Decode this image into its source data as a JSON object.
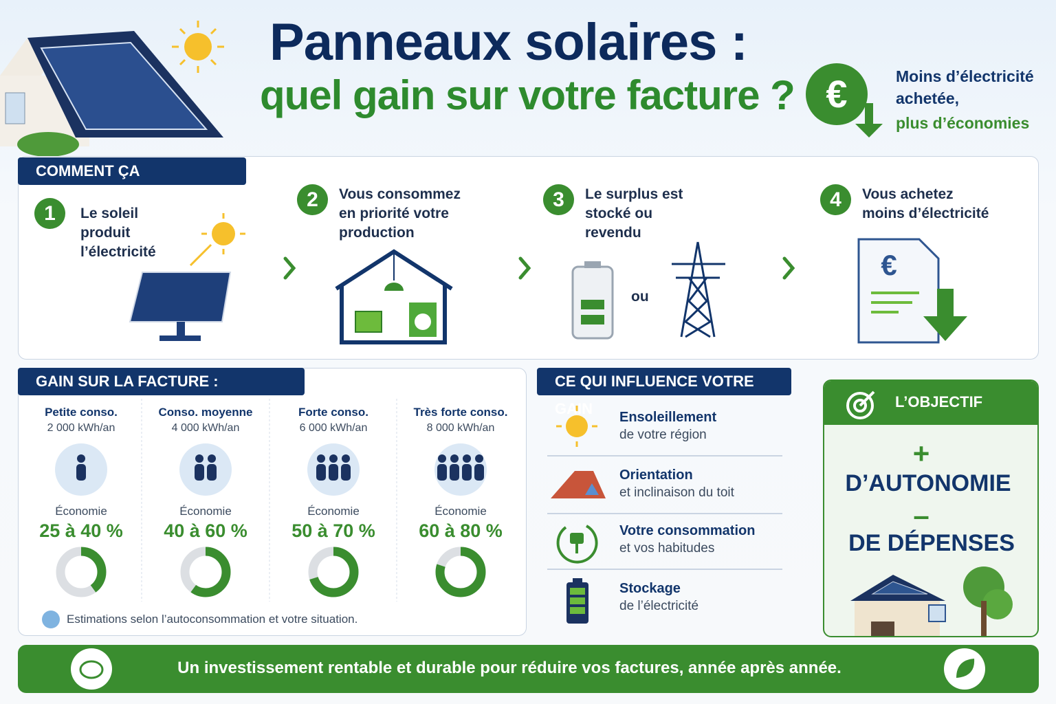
{
  "header": {
    "title": "Panneaux solaires :",
    "subtitle": "quel gain sur votre facture ?",
    "tagline": [
      "Moins d’électricité",
      "achetée,",
      "plus d’économies"
    ]
  },
  "how": {
    "title": "COMMENT ÇA FONCTIONNE",
    "steps": [
      {
        "number": "1",
        "lines": [
          "Le soleil",
          "produit",
          "l’électricité"
        ]
      },
      {
        "number": "2",
        "lines": [
          "Vous consommez",
          "en priorité votre",
          "production"
        ]
      },
      {
        "number": "3",
        "lines": [
          "Le surplus est",
          "stocké ou",
          "revendu"
        ]
      },
      {
        "number": "4",
        "lines": [
          "Vous achetez",
          "moins d’électricité"
        ]
      }
    ],
    "or": "ou"
  },
  "examples": {
    "title": "GAIN SUR LA FACTURE : EXEMPLES",
    "items": [
      {
        "label": "Petite conso.",
        "consumption": "2 000 kWh/an",
        "saving_label": "Économie",
        "saving": "25 à 40 %",
        "gauge": 40
      },
      {
        "label": "Conso. moyenne",
        "consumption": "4 000 kWh/an",
        "saving_label": "Économie",
        "saving": "40 à 60 %",
        "gauge": 60
      },
      {
        "label": "Forte conso.",
        "consumption": "6 000 kWh/an",
        "saving_label": "Économie",
        "saving": "50 à 70 %",
        "gauge": 70
      },
      {
        "label": "Très forte conso.",
        "consumption": "8 000 kWh/an",
        "saving_label": "Économie",
        "saving": "60 à 80 %",
        "gauge": 80
      }
    ],
    "note": "Estimations selon l’autoconsommation et votre situation."
  },
  "factors": {
    "title": "CE QUI INFLUENCE VOTRE GAIN",
    "items": [
      {
        "title": "Ensoleillement",
        "text": "de votre région"
      },
      {
        "title": "Orientation",
        "text": "et inclinaison du toit"
      },
      {
        "title": "Votre consommation",
        "text": "et vos habitudes"
      },
      {
        "title": "Stockage",
        "text": "de l’électricité"
      }
    ]
  },
  "goal": {
    "title": "L’OBJECTIF",
    "plus": "+",
    "line1": "D’AUTONOMIE",
    "minus": "–",
    "line2": "DE DÉPENSES"
  },
  "footer": "Un investissement rentable et durable pour réduire vos factures, année après année."
}
